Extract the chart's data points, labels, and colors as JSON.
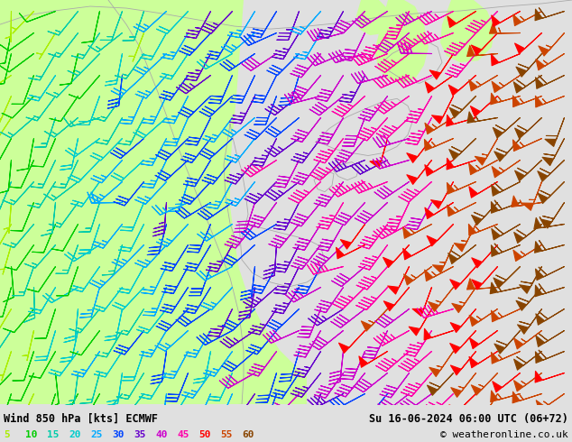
{
  "title_left": "Wind 850 hPa [kts] ECMWF",
  "title_right": "Su 16-06-2024 06:00 UTC (06+72)",
  "copyright": "© weatheronline.co.uk",
  "legend_values": [
    5,
    10,
    15,
    20,
    25,
    30,
    35,
    40,
    45,
    50,
    55,
    60
  ],
  "legend_colors": [
    "#aaee00",
    "#00cc00",
    "#00ccaa",
    "#00cccc",
    "#00aaff",
    "#0044ff",
    "#6600cc",
    "#cc00cc",
    "#ff00aa",
    "#ff0000",
    "#cc4400",
    "#884400"
  ],
  "bg_color": "#e0e0e0",
  "land_color_west": "#ccff99",
  "land_color_east": "#e8e8e8",
  "ocean_color": "#e8e8e8",
  "fig_width": 6.34,
  "fig_height": 4.9,
  "dpi": 100,
  "bottom_bar_color": "#cccccc",
  "font_family": "monospace",
  "coast_color": "#aaaaaa"
}
